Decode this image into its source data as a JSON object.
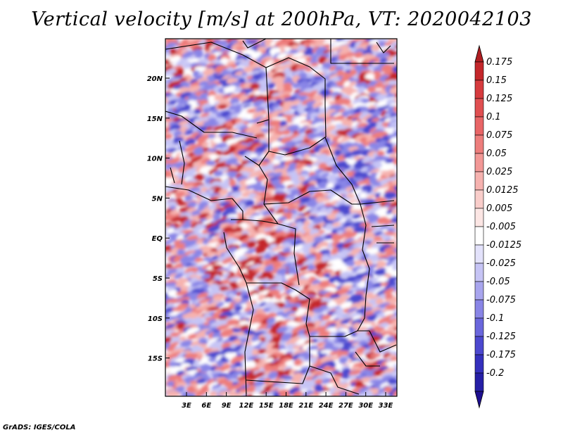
{
  "title": "Vertical velocity [m/s] at 200hPa, VT: 2020042103",
  "credit": "GrADS: IGES/COLA",
  "lat_labels": [
    "20N",
    "15N",
    "10N",
    "5N",
    "EQ",
    "5S",
    "10S",
    "15S"
  ],
  "lon_labels": [
    "3E",
    "6E",
    "9E",
    "12E",
    "15E",
    "18E",
    "21E",
    "24E",
    "27E",
    "30E",
    "33E"
  ],
  "colorbar": {
    "top_arrow_color": "#b01e22",
    "bottom_arrow_color": "#1e0f91",
    "levels": [
      {
        "label": "0.175",
        "color": "#c4272b"
      },
      {
        "label": "0.15",
        "color": "#d63b3e"
      },
      {
        "label": "0.125",
        "color": "#e04f51"
      },
      {
        "label": "0.1",
        "color": "#e86566"
      },
      {
        "label": "0.075",
        "color": "#ed7d7c"
      },
      {
        "label": "0.05",
        "color": "#f29896"
      },
      {
        "label": "0.025",
        "color": "#f6b2af"
      },
      {
        "label": "0.0125",
        "color": "#f9cdca"
      },
      {
        "label": "0.005",
        "color": "#fce6e4"
      },
      {
        "label": "-0.005",
        "color": "#ffffff"
      },
      {
        "label": "-0.0125",
        "color": "#e3e2fb"
      },
      {
        "label": "-0.025",
        "color": "#c6c4f5"
      },
      {
        "label": "-0.05",
        "color": "#a8a5ee"
      },
      {
        "label": "-0.075",
        "color": "#8985e6"
      },
      {
        "label": "-0.1",
        "color": "#6a66dc"
      },
      {
        "label": "-0.125",
        "color": "#4c48cf"
      },
      {
        "label": "-0.175",
        "color": "#3530bd"
      },
      {
        "label": "-0.2",
        "color": "#261fa6"
      }
    ]
  },
  "field_colors": {
    "positive_strong": "#c4272b",
    "positive": "#ed7d7c",
    "positive_light": "#f6b2af",
    "neutral": "#ffffff",
    "negative_light": "#c6c4f5",
    "negative": "#8985e6",
    "negative_strong": "#4c48cf"
  }
}
